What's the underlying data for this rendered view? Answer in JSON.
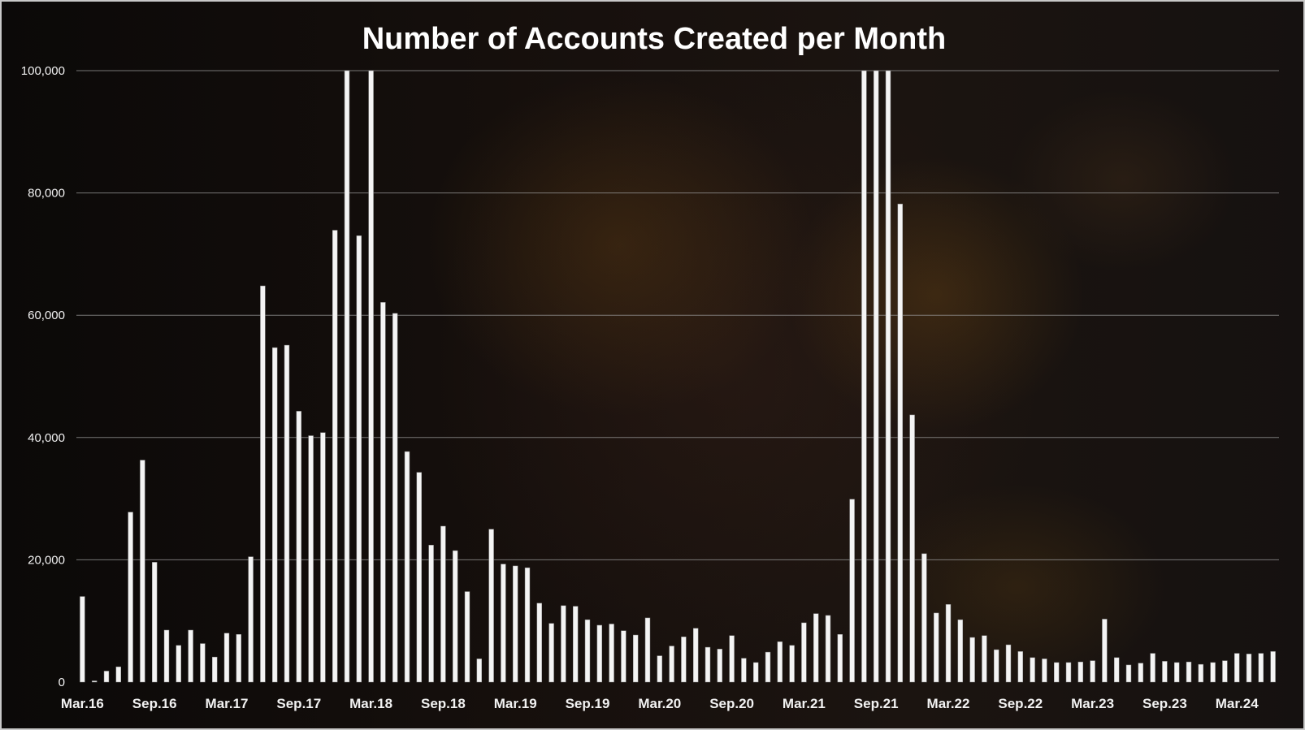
{
  "chart_data": {
    "type": "bar",
    "title": "Number of Accounts Created per Month",
    "xlabel": "",
    "ylabel": "",
    "ylim": [
      0,
      100000
    ],
    "y_ticks": [
      "0",
      "20,000",
      "40,000",
      "60,000",
      "80,000",
      "100,000"
    ],
    "y_tick_values": [
      0,
      20000,
      40000,
      60000,
      80000,
      100000
    ],
    "grid": true,
    "legend": "none",
    "bar_color": "#f4f4f4",
    "categories": [
      "Mar.16",
      "Apr.16",
      "May.16",
      "Jun.16",
      "Jul.16",
      "Aug.16",
      "Sep.16",
      "Oct.16",
      "Nov.16",
      "Dec.16",
      "Jan.17",
      "Feb.17",
      "Mar.17",
      "Apr.17",
      "May.17",
      "Jun.17",
      "Jul.17",
      "Aug.17",
      "Sep.17",
      "Oct.17",
      "Nov.17",
      "Dec.17",
      "Jan.18",
      "Feb.18",
      "Mar.18",
      "Apr.18",
      "May.18",
      "Jun.18",
      "Jul.18",
      "Aug.18",
      "Sep.18",
      "Oct.18",
      "Nov.18",
      "Dec.18",
      "Jan.19",
      "Feb.19",
      "Mar.19",
      "Apr.19",
      "May.19",
      "Jun.19",
      "Jul.19",
      "Aug.19",
      "Sep.19",
      "Oct.19",
      "Nov.19",
      "Dec.19",
      "Jan.20",
      "Feb.20",
      "Mar.20",
      "Apr.20",
      "May.20",
      "Jun.20",
      "Jul.20",
      "Aug.20",
      "Sep.20",
      "Oct.20",
      "Nov.20",
      "Dec.20",
      "Jan.21",
      "Feb.21",
      "Mar.21",
      "Apr.21",
      "May.21",
      "Jun.21",
      "Jul.21",
      "Aug.21",
      "Sep.21",
      "Oct.21",
      "Nov.21",
      "Dec.21",
      "Jan.22",
      "Feb.22",
      "Mar.22",
      "Apr.22",
      "May.22",
      "Jun.22",
      "Jul.22",
      "Aug.22",
      "Sep.22",
      "Oct.22",
      "Nov.22",
      "Dec.22",
      "Jan.23",
      "Feb.23",
      "Mar.23",
      "Apr.23",
      "May.23",
      "Jun.23",
      "Jul.23",
      "Aug.23",
      "Sep.23",
      "Oct.23",
      "Nov.23",
      "Dec.23",
      "Jan.24",
      "Feb.24",
      "Mar.24",
      "Apr.24",
      "May.24",
      "Jun.24"
    ],
    "x_tick_labels": [
      "Mar.16",
      "Sep.16",
      "Mar.17",
      "Sep.17",
      "Mar.18",
      "Sep.18",
      "Mar.19",
      "Sep.19",
      "Mar.20",
      "Sep.20",
      "Mar.21",
      "Sep.21",
      "Mar.22",
      "Sep.22",
      "Mar.23",
      "Sep.23",
      "Mar.24"
    ],
    "values": [
      14000,
      200,
      1800,
      2500,
      27800,
      36300,
      19600,
      8500,
      6000,
      8500,
      6300,
      4100,
      8000,
      7800,
      20500,
      64800,
      54700,
      55100,
      44300,
      40300,
      40800,
      73900,
      100000,
      73000,
      100000,
      62100,
      60300,
      37700,
      34300,
      22400,
      25500,
      21500,
      14800,
      3800,
      25000,
      19300,
      19000,
      18700,
      12900,
      9600,
      12500,
      12400,
      10200,
      9300,
      9500,
      8400,
      7700,
      10500,
      4300,
      5900,
      7400,
      8800,
      5700,
      5400,
      7600,
      3900,
      3200,
      4900,
      6600,
      6000,
      9700,
      11200,
      10900,
      7800,
      29900,
      100000,
      100000,
      100000,
      78200,
      43700,
      21000,
      11300,
      12700,
      10200,
      7300,
      7600,
      5300,
      6100,
      5000,
      4000,
      3800,
      3200,
      3200,
      3300,
      3500,
      10300,
      4000,
      2800,
      3100,
      4700,
      3400,
      3200,
      3300,
      2900,
      3200,
      3500,
      4700,
      4600,
      4700,
      5000
    ]
  }
}
